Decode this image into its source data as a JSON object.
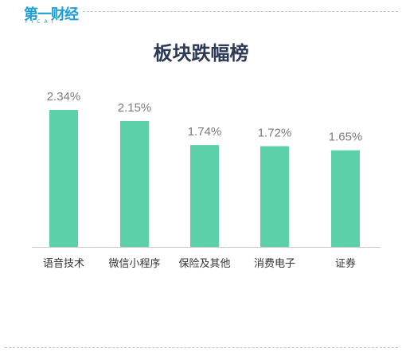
{
  "brand": {
    "name_cn": "第一财经",
    "name_en": "YICAI",
    "color": "#1e9fd8"
  },
  "chart_data": {
    "type": "bar",
    "title": "板块跌幅榜",
    "categories": [
      "语音技术",
      "微信小程序",
      "保险及其他",
      "消费电子",
      "证券"
    ],
    "values": [
      2.34,
      2.15,
      1.74,
      1.72,
      1.65
    ],
    "value_labels": [
      "2.34%",
      "2.15%",
      "1.74%",
      "1.72%",
      "1.65%"
    ],
    "unit": "%",
    "ylim": [
      0,
      2.34
    ],
    "bar_color": "#5cd0a8",
    "grid": false,
    "legend": "none"
  }
}
